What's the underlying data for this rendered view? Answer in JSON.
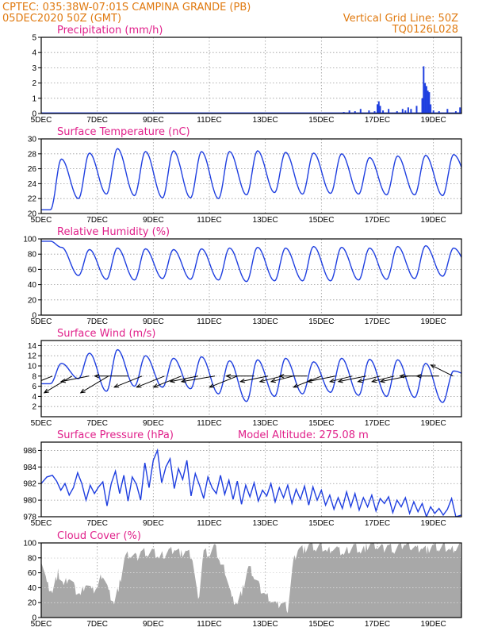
{
  "header": {
    "left_line1": "CPTEC:   035:38W-07:01S   CAMPINA GRANDE (PB)",
    "left_line2": "05DEC2020 50Z (GMT)",
    "right_line1": "Vertical Grid Line: 50Z",
    "right_line2": "TQ0126L028"
  },
  "colors": {
    "header": "#e07a10",
    "title": "#e0208a",
    "line": "#1f3fe0",
    "cloud": "#a8a8a8"
  },
  "x_axis": {
    "tick_labels": [
      "5DEC",
      "7DEC",
      "9DEC",
      "11DEC",
      "13DEC",
      "15DEC",
      "17DEC",
      "19DEC"
    ],
    "tick_days": [
      5,
      7,
      9,
      11,
      13,
      15,
      17,
      19
    ],
    "range_days": [
      5,
      20
    ]
  },
  "chart_data": [
    {
      "type": "bar",
      "title": "Precipitation (mm/h)",
      "ylim": [
        0,
        5
      ],
      "yticks": [
        "0",
        "1",
        "2",
        "3",
        "4",
        "5"
      ],
      "x": [
        15.8,
        16.0,
        16.2,
        16.4,
        16.7,
        16.9,
        17.0,
        17.05,
        17.1,
        17.2,
        17.4,
        17.7,
        17.9,
        18.0,
        18.1,
        18.2,
        18.4,
        18.6,
        18.65,
        18.7,
        18.75,
        18.8,
        18.85,
        18.9,
        19.0,
        19.2,
        19.5,
        19.8,
        19.95
      ],
      "values": [
        0.1,
        0.2,
        0.15,
        0.3,
        0.2,
        0.15,
        0.6,
        0.8,
        0.5,
        0.2,
        0.3,
        0.15,
        0.3,
        0.2,
        0.4,
        0.3,
        0.5,
        1.0,
        3.1,
        2.0,
        1.8,
        1.5,
        1.4,
        0.6,
        0.2,
        0.15,
        0.3,
        0.15,
        0.4
      ]
    },
    {
      "type": "line",
      "title": "Surface Temperature (nC)",
      "ylim": [
        20,
        30
      ],
      "yticks": [
        "20",
        "22",
        "24",
        "26",
        "28",
        "30"
      ],
      "daily_max": [
        27.3,
        28.1,
        28.7,
        28.3,
        28.4,
        28.3,
        28.3,
        28.4,
        28.2,
        28.1,
        28.0,
        27.5,
        27.7,
        27.8,
        27.9
      ],
      "daily_min": [
        20.5,
        22.0,
        22.6,
        22.4,
        22.1,
        22.1,
        22.0,
        22.5,
        22.8,
        22.6,
        22.7,
        22.6,
        22.5,
        22.5,
        22.4,
        24.0
      ]
    },
    {
      "type": "line",
      "title": "Relative Humidity (%)",
      "ylim": [
        0,
        100
      ],
      "yticks": [
        "0",
        "20",
        "40",
        "60",
        "80",
        "100"
      ],
      "daily_max": [
        89,
        86,
        88,
        87,
        86,
        87,
        88,
        89,
        88,
        90,
        89,
        88,
        90,
        91,
        88
      ],
      "daily_min": [
        97,
        52,
        47,
        46,
        48,
        47,
        46,
        44,
        45,
        45,
        45,
        46,
        47,
        48,
        51,
        60
      ]
    },
    {
      "type": "line",
      "title": "Surface Wind (m/s)",
      "ylim": [
        0,
        15
      ],
      "yticks": [
        "2",
        "4",
        "6",
        "8",
        "10",
        "12",
        "14"
      ],
      "daily_max": [
        10.5,
        12.5,
        13.2,
        12.0,
        11.5,
        11.8,
        11.0,
        11.2,
        11.5,
        10.8,
        11.5,
        11.3,
        11.2,
        10.5,
        9.0
      ],
      "daily_min": [
        6.5,
        7.5,
        5.0,
        6.0,
        5.8,
        5.5,
        4.5,
        3.0,
        4.0,
        4.5,
        4.8,
        4.2,
        4.0,
        3.8,
        2.8,
        8.0
      ],
      "arrow_x": [
        5.4,
        6.1,
        6.7,
        7.4,
        8.1,
        8.6,
        9.4,
        10.0,
        10.6,
        11.2,
        12.0,
        12.6,
        13.1,
        13.6,
        14.0,
        14.5,
        15.0,
        15.5,
        16.1,
        16.6,
        17.1,
        17.6,
        18.1,
        18.6,
        19.2,
        19.7
      ],
      "arrow_u": [
        5,
        5,
        5,
        5,
        6,
        5,
        5,
        5,
        5,
        6,
        5,
        5,
        5,
        4,
        4,
        5,
        5,
        5,
        4,
        5,
        4,
        4,
        5,
        4,
        4,
        4
      ],
      "arrow_v": [
        -2,
        -3,
        -1,
        -3,
        0,
        -2,
        -2,
        -2,
        -1,
        -1,
        -2,
        0,
        -1,
        -1,
        -1,
        0,
        -2,
        -1,
        -1,
        -1,
        -1,
        -1,
        -1,
        0,
        0,
        2
      ]
    },
    {
      "type": "line",
      "title": "Surface Pressure (hPa)",
      "annotation": "Model Altitude: 275.08 m",
      "ylim": [
        978,
        987
      ],
      "yticks": [
        "978",
        "980",
        "982",
        "984",
        "986"
      ],
      "x": [
        5.0,
        5.2,
        5.4,
        5.55,
        5.7,
        5.85,
        6.0,
        6.15,
        6.3,
        6.45,
        6.6,
        6.75,
        6.9,
        7.05,
        7.2,
        7.35,
        7.5,
        7.65,
        7.8,
        7.95,
        8.1,
        8.25,
        8.4,
        8.55,
        8.7,
        8.85,
        9.0,
        9.15,
        9.3,
        9.45,
        9.6,
        9.75,
        9.9,
        10.05,
        10.2,
        10.35,
        10.5,
        10.65,
        10.8,
        10.95,
        11.1,
        11.25,
        11.4,
        11.55,
        11.7,
        11.85,
        12.0,
        12.15,
        12.3,
        12.45,
        12.6,
        12.75,
        12.9,
        13.05,
        13.2,
        13.35,
        13.5,
        13.65,
        13.8,
        13.95,
        14.1,
        14.25,
        14.4,
        14.55,
        14.7,
        14.85,
        15.0,
        15.15,
        15.3,
        15.45,
        15.6,
        15.75,
        15.9,
        16.05,
        16.2,
        16.35,
        16.5,
        16.65,
        16.8,
        16.95,
        17.1,
        17.25,
        17.4,
        17.55,
        17.7,
        17.85,
        18.0,
        18.15,
        18.3,
        18.45,
        18.6,
        18.75,
        18.9,
        19.05,
        19.2,
        19.35,
        19.5,
        19.65,
        19.8,
        20.0
      ],
      "values": [
        982.0,
        982.8,
        983.0,
        982.3,
        981.2,
        982.0,
        980.6,
        981.5,
        983.3,
        982.0,
        980.0,
        981.8,
        980.8,
        981.6,
        982.2,
        979.3,
        982.0,
        983.5,
        980.8,
        983.0,
        979.9,
        982.8,
        981.9,
        980.0,
        984.5,
        981.5,
        984.8,
        986.0,
        982.1,
        984.0,
        985.0,
        981.4,
        983.8,
        982.5,
        984.8,
        980.5,
        983.2,
        981.8,
        980.2,
        982.8,
        981.5,
        980.8,
        983.0,
        980.7,
        982.4,
        980.1,
        982.3,
        979.5,
        981.8,
        980.4,
        982.1,
        979.9,
        981.2,
        980.5,
        982.0,
        979.8,
        981.5,
        980.3,
        981.8,
        979.6,
        981.3,
        980.1,
        981.7,
        979.4,
        981.6,
        980.0,
        981.2,
        979.4,
        980.6,
        978.9,
        980.3,
        979.0,
        981.0,
        979.2,
        980.8,
        978.8,
        980.3,
        979.2,
        980.6,
        978.7,
        980.2,
        979.6,
        980.4,
        978.5,
        980.0,
        979.2,
        980.3,
        978.4,
        979.8,
        978.6,
        979.6,
        978.0,
        979.2,
        978.4,
        979.0,
        978.2,
        978.9,
        980.2,
        978.0,
        978.2
      ]
    },
    {
      "type": "area",
      "title": "Cloud Cover (%)",
      "ylim": [
        0,
        100
      ],
      "yticks": [
        "0",
        "20",
        "40",
        "60",
        "80",
        "100"
      ],
      "x": [
        5.0,
        5.2,
        5.4,
        5.6,
        5.8,
        6.0,
        6.2,
        6.4,
        6.6,
        6.8,
        7.0,
        7.2,
        7.4,
        7.6,
        7.8,
        8.0,
        8.2,
        8.4,
        8.6,
        8.8,
        9.0,
        9.2,
        9.4,
        9.6,
        9.8,
        10.0,
        10.2,
        10.4,
        10.6,
        10.8,
        11.0,
        11.2,
        11.4,
        11.6,
        11.8,
        12.0,
        12.2,
        12.4,
        12.6,
        12.8,
        13.0,
        13.2,
        13.4,
        13.6,
        13.8,
        14.0,
        14.2,
        14.4,
        14.6,
        14.8,
        15.0,
        15.2,
        15.4,
        15.6,
        15.8,
        16.0,
        16.2,
        16.4,
        16.6,
        16.8,
        17.0,
        17.2,
        17.4,
        17.6,
        17.8,
        18.0,
        18.2,
        18.4,
        18.6,
        18.8,
        19.0,
        19.2,
        19.4,
        19.6,
        19.8,
        20.0
      ],
      "values": [
        80,
        45,
        35,
        60,
        42,
        55,
        38,
        30,
        48,
        35,
        40,
        60,
        35,
        20,
        45,
        82,
        84,
        80,
        90,
        86,
        88,
        80,
        85,
        90,
        92,
        85,
        88,
        80,
        20,
        90,
        85,
        95,
        72,
        60,
        25,
        20,
        38,
        68,
        55,
        40,
        30,
        25,
        15,
        20,
        12,
        75,
        95,
        90,
        98,
        92,
        96,
        88,
        94,
        90,
        85,
        92,
        96,
        88,
        94,
        98,
        95,
        92,
        97,
        90,
        95,
        98,
        96,
        92,
        94,
        90,
        96,
        92,
        95,
        90,
        94,
        98
      ]
    }
  ]
}
